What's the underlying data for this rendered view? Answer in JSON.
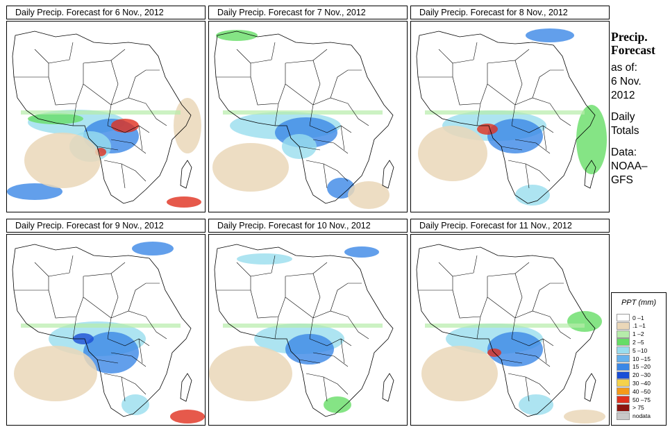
{
  "panels": [
    {
      "title": "Daily Precip. Forecast for  6 Nov., 2012",
      "date": "6 Nov., 2012"
    },
    {
      "title": "Daily Precip. Forecast for  7 Nov., 2012",
      "date": "7 Nov., 2012"
    },
    {
      "title": "Daily Precip. Forecast for  8 Nov., 2012",
      "date": "8 Nov., 2012"
    },
    {
      "title": "Daily Precip. Forecast for  9 Nov., 2012",
      "date": "9 Nov., 2012"
    },
    {
      "title": "Daily Precip. Forecast for  10 Nov., 2012",
      "date": "10 Nov., 2012"
    },
    {
      "title": "Daily Precip. Forecast for  11 Nov., 2012",
      "date": "11 Nov., 2012"
    }
  ],
  "side": {
    "title_line1": "Precip.",
    "title_line2": "Forecast",
    "asof_line1": "as of:",
    "asof_line2": "6 Nov.",
    "asof_line3": "2012",
    "daily_line1": "Daily",
    "daily_line2": "Totals",
    "data_line1": "Data:",
    "data_line2": "NOAA–",
    "data_line3": "GFS"
  },
  "legend": {
    "title": "PPT (mm)",
    "items": [
      {
        "label": "0 –1",
        "color": "#ffffff"
      },
      {
        "label": ".1 –1",
        "color": "#ead7b8"
      },
      {
        "label": "1 –2",
        "color": "#b6ecaa"
      },
      {
        "label": "2 –5",
        "color": "#66dd66"
      },
      {
        "label": "5 –10",
        "color": "#99ddee"
      },
      {
        "label": "10 –15",
        "color": "#66b2ee"
      },
      {
        "label": "15 –20",
        "color": "#3b87e6"
      },
      {
        "label": "20 –30",
        "color": "#1a4ed6"
      },
      {
        "label": "30 –40",
        "color": "#f5d24a"
      },
      {
        "label": "40 –50",
        "color": "#f59a1a"
      },
      {
        "label": "50 –75",
        "color": "#e0301e"
      },
      {
        "label": "> 75",
        "color": "#8c1410"
      },
      {
        "label": "nodata",
        "color": "#c8c8c8"
      }
    ]
  },
  "colors": {
    "land_outline": "#000000",
    "dry": "#ead7b8",
    "light": "#b6ecaa",
    "green": "#66dd66",
    "cyan": "#99ddee",
    "blue": "#3b87e6",
    "dark_blue": "#1a4ed6",
    "red": "#e0301e"
  }
}
